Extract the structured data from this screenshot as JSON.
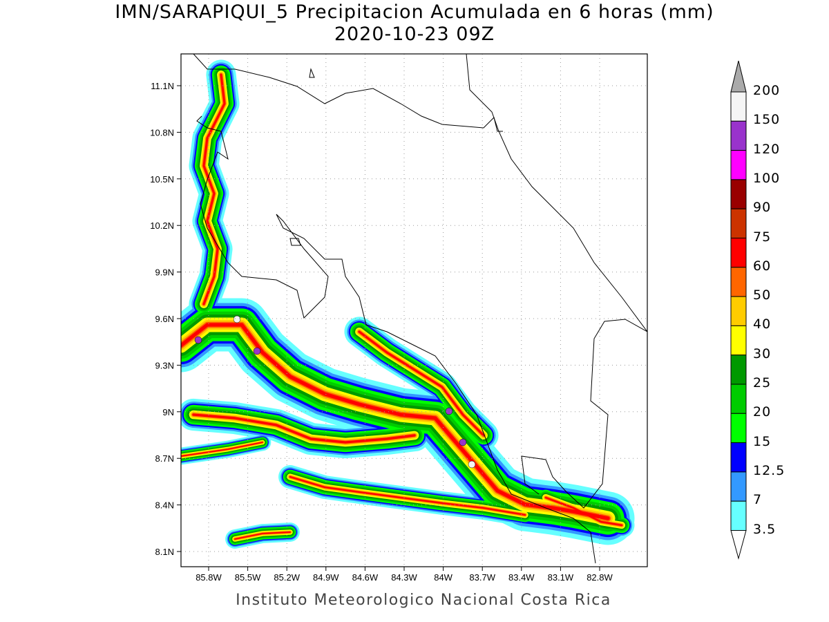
{
  "title": "IMN/SARAPIQUI_5 Precipitacion Acumulada en 6 horas (mm)",
  "subtitle": "2020-10-23 09Z",
  "footer": "Instituto Meteorologico Nacional Costa Rica",
  "lat_labels": [
    "11.1N",
    "10.8N",
    "10.5N",
    "10.2N",
    "9.9N",
    "9.6N",
    "9.3N",
    "9N",
    "8.7N",
    "8.4N",
    "8.1N"
  ],
  "lon_labels": [
    "85.8W",
    "85.5W",
    "85.2W",
    "84.9W",
    "84.6W",
    "84.3W",
    "84W",
    "83.7W",
    "83.4W",
    "83.1W",
    "82.8W"
  ],
  "colorbar": {
    "labels": [
      "200",
      "150",
      "120",
      "100",
      "90",
      "75",
      "60",
      "50",
      "40",
      "30",
      "25",
      "20",
      "15",
      "12.5",
      "7",
      "3.5"
    ],
    "colors": [
      "#f5f5f5",
      "#9933cc",
      "#ff00ff",
      "#990000",
      "#cc3300",
      "#ff0000",
      "#ff6600",
      "#ffcc00",
      "#ffff00",
      "#009900",
      "#00cc00",
      "#00ff00",
      "#0000ff",
      "#3399ff",
      "#66ffff"
    ],
    "over_color": "#aaaaaa",
    "under_color": "#ffffff"
  }
}
